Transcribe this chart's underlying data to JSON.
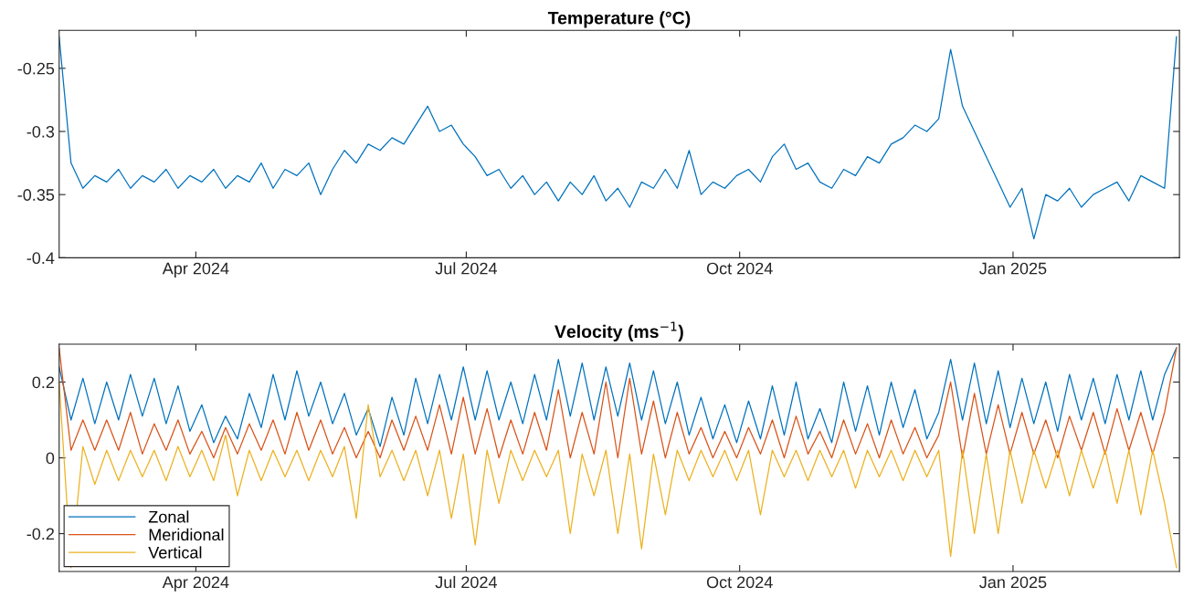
{
  "chart_data": [
    {
      "type": "line",
      "title": "Temperature (°C)",
      "x": [
        "2024-02-15",
        "2024-02-19",
        "2024-02-23",
        "2024-02-27",
        "2024-03-02",
        "2024-03-06",
        "2024-03-10",
        "2024-03-14",
        "2024-03-18",
        "2024-03-22",
        "2024-03-26",
        "2024-03-30",
        "2024-04-03",
        "2024-04-07",
        "2024-04-11",
        "2024-04-15",
        "2024-04-19",
        "2024-04-23",
        "2024-04-27",
        "2024-05-01",
        "2024-05-05",
        "2024-05-09",
        "2024-05-13",
        "2024-05-17",
        "2024-05-21",
        "2024-05-25",
        "2024-05-29",
        "2024-06-02",
        "2024-06-06",
        "2024-06-10",
        "2024-06-14",
        "2024-06-18",
        "2024-06-22",
        "2024-06-26",
        "2024-06-30",
        "2024-07-04",
        "2024-07-08",
        "2024-07-12",
        "2024-07-16",
        "2024-07-20",
        "2024-07-24",
        "2024-07-28",
        "2024-08-01",
        "2024-08-05",
        "2024-08-09",
        "2024-08-13",
        "2024-08-17",
        "2024-08-21",
        "2024-08-25",
        "2024-08-29",
        "2024-09-02",
        "2024-09-06",
        "2024-09-10",
        "2024-09-14",
        "2024-09-18",
        "2024-09-22",
        "2024-09-26",
        "2024-09-30",
        "2024-10-04",
        "2024-10-08",
        "2024-10-12",
        "2024-10-16",
        "2024-10-20",
        "2024-10-24",
        "2024-10-28",
        "2024-11-01",
        "2024-11-05",
        "2024-11-09",
        "2024-11-13",
        "2024-11-17",
        "2024-11-21",
        "2024-11-25",
        "2024-11-29",
        "2024-12-03",
        "2024-12-07",
        "2024-12-11",
        "2024-12-15",
        "2024-12-19",
        "2024-12-23",
        "2024-12-27",
        "2024-12-31",
        "2025-01-04",
        "2025-01-08",
        "2025-01-12",
        "2025-01-16",
        "2025-01-20",
        "2025-01-24",
        "2025-01-28",
        "2025-02-01",
        "2025-02-05",
        "2025-02-09",
        "2025-02-13",
        "2025-02-17",
        "2025-02-21",
        "2025-02-25"
      ],
      "series": [
        {
          "color": "#0072bd",
          "values": [
            -0.225,
            -0.325,
            -0.345,
            -0.335,
            -0.34,
            -0.33,
            -0.345,
            -0.335,
            -0.34,
            -0.33,
            -0.345,
            -0.335,
            -0.34,
            -0.33,
            -0.345,
            -0.335,
            -0.34,
            -0.325,
            -0.345,
            -0.33,
            -0.335,
            -0.325,
            -0.35,
            -0.33,
            -0.315,
            -0.325,
            -0.31,
            -0.315,
            -0.305,
            -0.31,
            -0.295,
            -0.28,
            -0.3,
            -0.295,
            -0.31,
            -0.32,
            -0.335,
            -0.33,
            -0.345,
            -0.335,
            -0.35,
            -0.34,
            -0.355,
            -0.34,
            -0.35,
            -0.335,
            -0.355,
            -0.345,
            -0.36,
            -0.34,
            -0.345,
            -0.33,
            -0.345,
            -0.315,
            -0.35,
            -0.34,
            -0.345,
            -0.335,
            -0.33,
            -0.34,
            -0.32,
            -0.31,
            -0.33,
            -0.325,
            -0.34,
            -0.345,
            -0.33,
            -0.335,
            -0.32,
            -0.325,
            -0.31,
            -0.305,
            -0.295,
            -0.3,
            -0.29,
            -0.235,
            -0.28,
            -0.3,
            -0.32,
            -0.34,
            -0.36,
            -0.345,
            -0.385,
            -0.35,
            -0.355,
            -0.345,
            -0.36,
            -0.35,
            -0.345,
            -0.34,
            -0.355,
            -0.335,
            -0.34,
            -0.345,
            -0.225
          ]
        }
      ],
      "xlim": [
        "2024-02-15",
        "2025-02-26"
      ],
      "xticks": [
        {
          "value": "2024-04-01",
          "label": "Apr 2024"
        },
        {
          "value": "2024-07-01",
          "label": "Jul 2024"
        },
        {
          "value": "2024-10-01",
          "label": "Oct 2024"
        },
        {
          "value": "2025-01-01",
          "label": "Jan 2025"
        }
      ],
      "ylim": [
        -0.4,
        -0.22
      ],
      "yticks": [
        -0.4,
        -0.35,
        -0.3,
        -0.25
      ],
      "grid": false,
      "legend": false
    },
    {
      "type": "line",
      "title": "Velocity (ms$^{−1}$)",
      "x": [
        "2024-02-15",
        "2024-02-19",
        "2024-02-23",
        "2024-02-27",
        "2024-03-02",
        "2024-03-06",
        "2024-03-10",
        "2024-03-14",
        "2024-03-18",
        "2024-03-22",
        "2024-03-26",
        "2024-03-30",
        "2024-04-03",
        "2024-04-07",
        "2024-04-11",
        "2024-04-15",
        "2024-04-19",
        "2024-04-23",
        "2024-04-27",
        "2024-05-01",
        "2024-05-05",
        "2024-05-09",
        "2024-05-13",
        "2024-05-17",
        "2024-05-21",
        "2024-05-25",
        "2024-05-29",
        "2024-06-02",
        "2024-06-06",
        "2024-06-10",
        "2024-06-14",
        "2024-06-18",
        "2024-06-22",
        "2024-06-26",
        "2024-06-30",
        "2024-07-04",
        "2024-07-08",
        "2024-07-12",
        "2024-07-16",
        "2024-07-20",
        "2024-07-24",
        "2024-07-28",
        "2024-08-01",
        "2024-08-05",
        "2024-08-09",
        "2024-08-13",
        "2024-08-17",
        "2024-08-21",
        "2024-08-25",
        "2024-08-29",
        "2024-09-02",
        "2024-09-06",
        "2024-09-10",
        "2024-09-14",
        "2024-09-18",
        "2024-09-22",
        "2024-09-26",
        "2024-09-30",
        "2024-10-04",
        "2024-10-08",
        "2024-10-12",
        "2024-10-16",
        "2024-10-20",
        "2024-10-24",
        "2024-10-28",
        "2024-11-01",
        "2024-11-05",
        "2024-11-09",
        "2024-11-13",
        "2024-11-17",
        "2024-11-21",
        "2024-11-25",
        "2024-11-29",
        "2024-12-03",
        "2024-12-07",
        "2024-12-11",
        "2024-12-15",
        "2024-12-19",
        "2024-12-23",
        "2024-12-27",
        "2024-12-31",
        "2025-01-04",
        "2025-01-08",
        "2025-01-12",
        "2025-01-16",
        "2025-01-20",
        "2025-01-24",
        "2025-01-28",
        "2025-02-01",
        "2025-02-05",
        "2025-02-09",
        "2025-02-13",
        "2025-02-17",
        "2025-02-21",
        "2025-02-25"
      ],
      "series": [
        {
          "name": "Zonal",
          "color": "#0072bd",
          "values": [
            0.24,
            0.1,
            0.21,
            0.09,
            0.2,
            0.1,
            0.22,
            0.11,
            0.21,
            0.09,
            0.19,
            0.07,
            0.14,
            0.04,
            0.11,
            0.05,
            0.17,
            0.08,
            0.22,
            0.1,
            0.23,
            0.11,
            0.2,
            0.09,
            0.17,
            0.06,
            0.13,
            0.03,
            0.16,
            0.06,
            0.21,
            0.09,
            0.22,
            0.1,
            0.24,
            0.1,
            0.23,
            0.1,
            0.2,
            0.09,
            0.22,
            0.1,
            0.26,
            0.11,
            0.25,
            0.1,
            0.24,
            0.11,
            0.25,
            0.1,
            0.23,
            0.09,
            0.2,
            0.06,
            0.16,
            0.05,
            0.14,
            0.04,
            0.15,
            0.05,
            0.19,
            0.06,
            0.2,
            0.05,
            0.13,
            0.04,
            0.2,
            0.07,
            0.19,
            0.06,
            0.2,
            0.08,
            0.18,
            0.05,
            0.12,
            0.26,
            0.1,
            0.25,
            0.09,
            0.23,
            0.08,
            0.21,
            0.09,
            0.2,
            0.07,
            0.22,
            0.1,
            0.21,
            0.09,
            0.22,
            0.1,
            0.23,
            0.1,
            0.22,
            0.29
          ]
        },
        {
          "name": "Meridional",
          "color": "#d95319",
          "values": [
            0.29,
            0.02,
            0.1,
            0.02,
            0.1,
            0.02,
            0.12,
            0.01,
            0.09,
            0.02,
            0.1,
            0.01,
            0.07,
            0.0,
            0.08,
            0.01,
            0.09,
            0.02,
            0.1,
            0.01,
            0.12,
            0.02,
            0.1,
            0.01,
            0.08,
            0.0,
            0.07,
            0.0,
            0.1,
            0.02,
            0.11,
            0.02,
            0.14,
            0.01,
            0.16,
            0.01,
            0.13,
            0.0,
            0.1,
            0.01,
            0.12,
            0.02,
            0.18,
            0.0,
            0.12,
            0.01,
            0.2,
            0.0,
            0.21,
            0.01,
            0.15,
            0.0,
            0.12,
            0.01,
            0.08,
            0.0,
            0.07,
            0.0,
            0.08,
            0.01,
            0.1,
            0.0,
            0.11,
            0.01,
            0.07,
            0.0,
            0.1,
            0.01,
            0.09,
            0.0,
            0.1,
            0.01,
            0.08,
            0.0,
            0.06,
            0.2,
            0.0,
            0.17,
            0.01,
            0.14,
            0.01,
            0.12,
            0.01,
            0.1,
            0.0,
            0.11,
            0.02,
            0.12,
            0.01,
            0.13,
            0.02,
            0.12,
            0.01,
            0.12,
            0.29
          ]
        },
        {
          "name": "Vertical",
          "color": "#edb120",
          "values": [
            0.2,
            -0.29,
            0.03,
            -0.07,
            0.02,
            -0.06,
            0.02,
            -0.05,
            0.02,
            -0.06,
            0.03,
            -0.05,
            0.02,
            -0.06,
            0.06,
            -0.1,
            0.02,
            -0.06,
            0.02,
            -0.05,
            0.02,
            -0.06,
            0.02,
            -0.05,
            0.03,
            -0.16,
            0.14,
            -0.05,
            0.02,
            -0.06,
            0.02,
            -0.1,
            0.02,
            -0.16,
            0.01,
            -0.23,
            0.02,
            -0.12,
            0.02,
            -0.06,
            0.02,
            -0.05,
            0.02,
            -0.2,
            0.01,
            -0.1,
            0.02,
            -0.2,
            0.01,
            -0.24,
            0.01,
            -0.15,
            0.02,
            -0.06,
            0.02,
            -0.05,
            0.02,
            -0.06,
            0.02,
            -0.15,
            0.02,
            -0.05,
            0.02,
            -0.06,
            0.02,
            -0.05,
            0.02,
            -0.08,
            0.02,
            -0.05,
            0.02,
            -0.06,
            0.02,
            -0.05,
            0.02,
            -0.26,
            0.02,
            -0.2,
            0.01,
            -0.2,
            0.02,
            -0.12,
            0.02,
            -0.08,
            0.02,
            -0.1,
            0.02,
            -0.08,
            0.02,
            -0.12,
            0.02,
            -0.15,
            0.02,
            -0.12,
            -0.29
          ]
        }
      ],
      "xlim": [
        "2024-02-15",
        "2025-02-26"
      ],
      "xticks": [
        {
          "value": "2024-04-01",
          "label": "Apr 2024"
        },
        {
          "value": "2024-07-01",
          "label": "Jul 2024"
        },
        {
          "value": "2024-10-01",
          "label": "Oct 2024"
        },
        {
          "value": "2025-01-01",
          "label": "Jan 2025"
        }
      ],
      "ylim": [
        -0.3,
        0.3
      ],
      "yticks": [
        -0.2,
        0,
        0.2
      ],
      "grid": false,
      "legend": "bottom left"
    }
  ]
}
